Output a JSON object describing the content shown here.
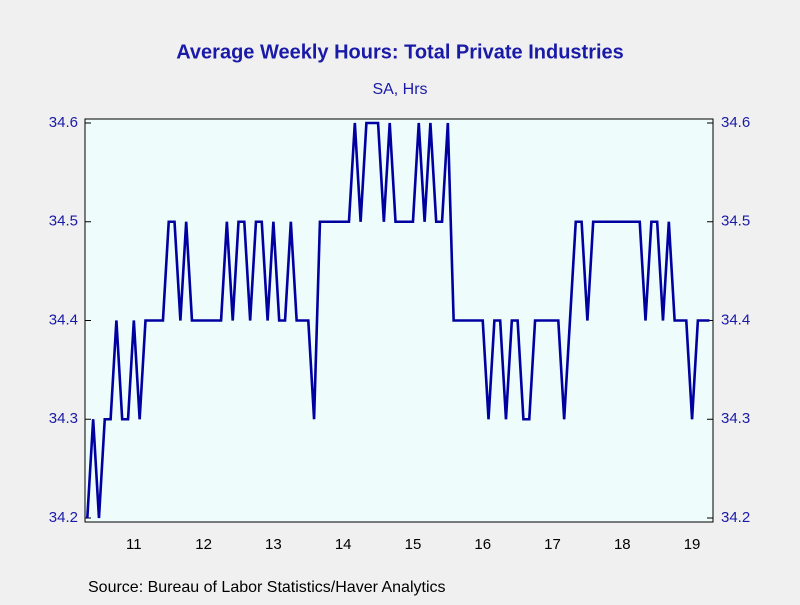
{
  "chart_data": {
    "type": "line",
    "title": "Average Weekly Hours: Total Private Industries",
    "subtitle": "SA, Hrs",
    "source": "Source:  Bureau of Labor Statistics/Haver Analytics",
    "color": "#0000a0",
    "x": [
      2010.833,
      2010.917,
      2011.0,
      2011.083,
      2011.167,
      2011.25,
      2011.333,
      2011.417,
      2011.5,
      2011.583,
      2011.667,
      2011.75,
      2011.833,
      2011.917,
      2012.0,
      2012.083,
      2012.167,
      2012.25,
      2012.333,
      2012.417,
      2012.5,
      2012.583,
      2012.667,
      2012.75,
      2012.833,
      2012.917,
      2013.0,
      2013.083,
      2013.167,
      2013.25,
      2013.333,
      2013.417,
      2013.5,
      2013.583,
      2013.667,
      2013.75,
      2013.833,
      2013.917,
      2014.0,
      2014.083,
      2014.167,
      2014.25,
      2014.333,
      2014.417,
      2014.5,
      2014.583,
      2014.667,
      2014.75,
      2014.833,
      2014.917,
      2015.0,
      2015.083,
      2015.167,
      2015.25,
      2015.333,
      2015.417,
      2015.5,
      2015.583,
      2015.667,
      2015.75,
      2015.833,
      2015.917,
      2016.0,
      2016.083,
      2016.167,
      2016.25,
      2016.333,
      2016.417,
      2016.5,
      2016.583,
      2016.667,
      2016.75,
      2016.833,
      2016.917,
      2017.0,
      2017.083,
      2017.167,
      2017.25,
      2017.333,
      2017.417,
      2017.5,
      2017.583,
      2017.667,
      2017.75,
      2017.833,
      2017.917,
      2018.0,
      2018.083,
      2018.167,
      2018.25,
      2018.333,
      2018.417,
      2018.5,
      2018.583,
      2018.667,
      2018.75,
      2018.833,
      2018.917,
      2019.0,
      2019.083,
      2019.167,
      2019.25,
      2019.333,
      2019.417,
      2019.5,
      2019.583,
      2019.667,
      2019.75
    ],
    "values": [
      34.2,
      34.3,
      34.2,
      34.3,
      34.3,
      34.4,
      34.3,
      34.3,
      34.4,
      34.3,
      34.4,
      34.4,
      34.4,
      34.4,
      34.5,
      34.5,
      34.4,
      34.5,
      34.4,
      34.4,
      34.4,
      34.4,
      34.4,
      34.4,
      34.5,
      34.4,
      34.5,
      34.5,
      34.4,
      34.5,
      34.5,
      34.4,
      34.5,
      34.4,
      34.4,
      34.5,
      34.4,
      34.4,
      34.4,
      34.3,
      34.5,
      34.5,
      34.5,
      34.5,
      34.5,
      34.5,
      34.6,
      34.5,
      34.6,
      34.6,
      34.6,
      34.5,
      34.6,
      34.5,
      34.5,
      34.5,
      34.5,
      34.6,
      34.5,
      34.6,
      34.5,
      34.5,
      34.6,
      34.4,
      34.4,
      34.4,
      34.4,
      34.4,
      34.4,
      34.3,
      34.4,
      34.4,
      34.3,
      34.4,
      34.4,
      34.3,
      34.3,
      34.4,
      34.4,
      34.4,
      34.4,
      34.4,
      34.3,
      34.4,
      34.5,
      34.5,
      34.4,
      34.5,
      34.5,
      34.5,
      34.5,
      34.5,
      34.5,
      34.5,
      34.5,
      34.5,
      34.4,
      34.5,
      34.5,
      34.4,
      34.5,
      34.4,
      34.4,
      34.4,
      34.3,
      34.4,
      34.4,
      34.4
    ],
    "xlim": [
      2010.8,
      2019.8
    ],
    "xticks": [
      {
        "value": 2011.5,
        "label": "11"
      },
      {
        "value": 2012.5,
        "label": "12"
      },
      {
        "value": 2013.5,
        "label": "13"
      },
      {
        "value": 2014.5,
        "label": "14"
      },
      {
        "value": 2015.5,
        "label": "15"
      },
      {
        "value": 2016.5,
        "label": "16"
      },
      {
        "value": 2017.5,
        "label": "17"
      },
      {
        "value": 2018.5,
        "label": "18"
      },
      {
        "value": 2019.5,
        "label": "19"
      }
    ],
    "ylim": [
      34.2,
      34.6
    ],
    "yticks": [
      34.2,
      34.3,
      34.4,
      34.5,
      34.6
    ]
  }
}
